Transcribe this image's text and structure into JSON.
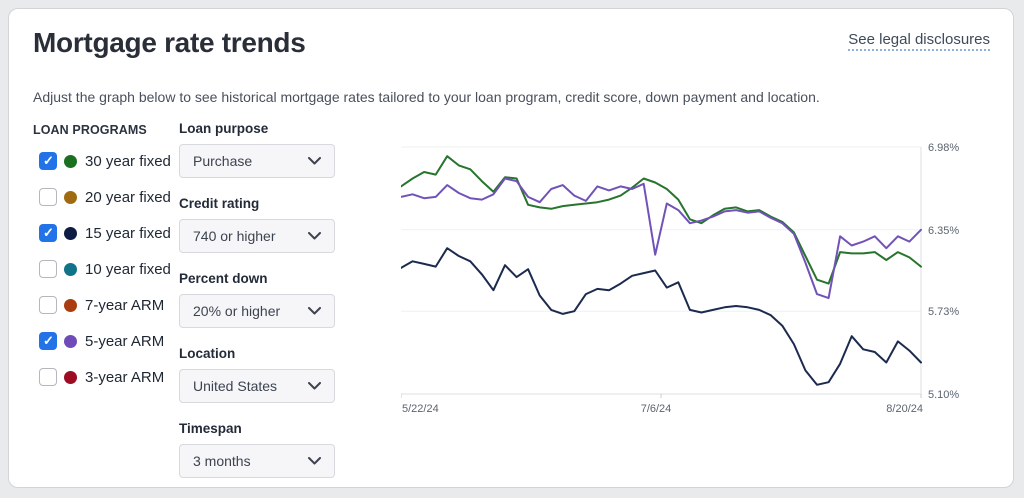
{
  "page": {
    "title": "Mortgage rate trends",
    "legal_link": "See legal disclosures",
    "subtitle": "Adjust the graph below to see historical mortgage rates tailored to your loan program, credit score, down payment and location."
  },
  "loan_programs": {
    "heading": "LOAN PROGRAMS",
    "items": [
      {
        "label": "30 year fixed",
        "checked": true,
        "color": "#1a701f"
      },
      {
        "label": "20 year fixed",
        "checked": false,
        "color": "#a06b10"
      },
      {
        "label": "15 year fixed",
        "checked": true,
        "color": "#0d1b45"
      },
      {
        "label": "10 year fixed",
        "checked": false,
        "color": "#0f7389"
      },
      {
        "label": "7-year ARM",
        "checked": false,
        "color": "#aa3d10"
      },
      {
        "label": "5-year ARM",
        "checked": true,
        "color": "#6f4bb8"
      },
      {
        "label": "3-year ARM",
        "checked": false,
        "color": "#9c0c22"
      }
    ],
    "checkbox_checked_color": "#2273e8"
  },
  "filters": [
    {
      "label": "Loan purpose",
      "value": "Purchase"
    },
    {
      "label": "Credit rating",
      "value": "740 or higher"
    },
    {
      "label": "Percent down",
      "value": "20% or higher"
    },
    {
      "label": "Location",
      "value": "United States"
    },
    {
      "label": "Timespan",
      "value": "3 months"
    }
  ],
  "chart_data": {
    "type": "line",
    "title": "",
    "xlabel": "",
    "ylabel": "",
    "grid": true,
    "legend": "none",
    "ylim": [
      5.1,
      6.98
    ],
    "y_ticks": [
      6.98,
      6.35,
      5.73,
      5.1
    ],
    "y_tick_labels": [
      "6.98%",
      "6.35%",
      "5.73%",
      "5.10%"
    ],
    "x_range_days": [
      0,
      90
    ],
    "x_tick_days": [
      0,
      45,
      90
    ],
    "x_tick_labels": [
      "5/22/24",
      "7/6/24",
      "8/20/24"
    ],
    "days": [
      0,
      2,
      4,
      6,
      8,
      10,
      12,
      14,
      16,
      18,
      20,
      22,
      24,
      26,
      28,
      30,
      32,
      34,
      36,
      38,
      40,
      42,
      44,
      46,
      48,
      50,
      52,
      54,
      56,
      58,
      60,
      62,
      64,
      66,
      68,
      70,
      72,
      74,
      76,
      78,
      80,
      82,
      84,
      86,
      88,
      90
    ],
    "series": [
      {
        "name": "15 year fixed",
        "color": "#1b2a4e",
        "values": [
          6.06,
          6.11,
          6.09,
          6.07,
          6.21,
          6.15,
          6.11,
          6.01,
          5.89,
          6.08,
          5.99,
          6.05,
          5.85,
          5.74,
          5.71,
          5.73,
          5.86,
          5.9,
          5.89,
          5.94,
          6.0,
          6.02,
          6.04,
          5.91,
          5.95,
          5.74,
          5.72,
          5.74,
          5.76,
          5.77,
          5.76,
          5.74,
          5.7,
          5.62,
          5.48,
          5.28,
          5.17,
          5.19,
          5.33,
          5.54,
          5.44,
          5.42,
          5.34,
          5.5,
          5.43,
          5.34
        ]
      },
      {
        "name": "30 year fixed",
        "color": "#27742d",
        "values": [
          6.68,
          6.74,
          6.79,
          6.77,
          6.91,
          6.84,
          6.81,
          6.72,
          6.64,
          6.75,
          6.74,
          6.54,
          6.52,
          6.51,
          6.53,
          6.54,
          6.55,
          6.56,
          6.58,
          6.61,
          6.67,
          6.74,
          6.71,
          6.66,
          6.58,
          6.43,
          6.4,
          6.46,
          6.51,
          6.52,
          6.49,
          6.5,
          6.45,
          6.41,
          6.33,
          6.15,
          5.97,
          5.94,
          6.18,
          6.17,
          6.17,
          6.18,
          6.12,
          6.18,
          6.14,
          6.07
        ]
      },
      {
        "name": "5-year ARM",
        "color": "#7153b8",
        "values": [
          6.6,
          6.62,
          6.59,
          6.6,
          6.69,
          6.63,
          6.59,
          6.58,
          6.62,
          6.74,
          6.72,
          6.6,
          6.56,
          6.66,
          6.69,
          6.61,
          6.57,
          6.68,
          6.65,
          6.68,
          6.66,
          6.7,
          6.16,
          6.55,
          6.5,
          6.4,
          6.42,
          6.45,
          6.49,
          6.5,
          6.48,
          6.49,
          6.44,
          6.4,
          6.32,
          6.1,
          5.86,
          5.83,
          6.3,
          6.23,
          6.26,
          6.3,
          6.21,
          6.3,
          6.26,
          6.35
        ]
      }
    ]
  }
}
